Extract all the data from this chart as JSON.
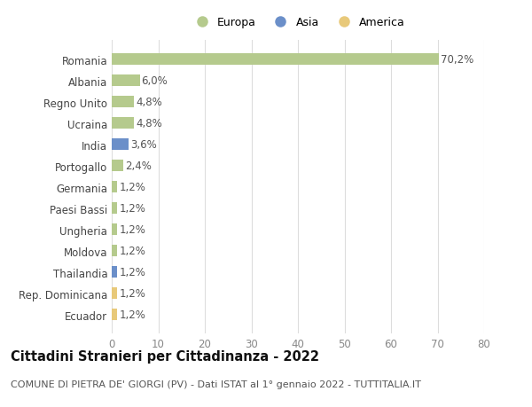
{
  "categories": [
    "Ecuador",
    "Rep. Dominicana",
    "Thailandia",
    "Moldova",
    "Ungheria",
    "Paesi Bassi",
    "Germania",
    "Portogallo",
    "India",
    "Ucraina",
    "Regno Unito",
    "Albania",
    "Romania"
  ],
  "values": [
    1.2,
    1.2,
    1.2,
    1.2,
    1.2,
    1.2,
    1.2,
    2.4,
    3.6,
    4.8,
    4.8,
    6.0,
    70.2
  ],
  "labels": [
    "1,2%",
    "1,2%",
    "1,2%",
    "1,2%",
    "1,2%",
    "1,2%",
    "1,2%",
    "2,4%",
    "3,6%",
    "4,8%",
    "4,8%",
    "6,0%",
    "70,2%"
  ],
  "colors": [
    "#e8c97a",
    "#e8c97a",
    "#6b8fc9",
    "#b5ca8d",
    "#b5ca8d",
    "#b5ca8d",
    "#b5ca8d",
    "#b5ca8d",
    "#6b8fc9",
    "#b5ca8d",
    "#b5ca8d",
    "#b5ca8d",
    "#b5ca8d"
  ],
  "continent": [
    "America",
    "America",
    "Asia",
    "Europa",
    "Europa",
    "Europa",
    "Europa",
    "Europa",
    "Asia",
    "Europa",
    "Europa",
    "Europa",
    "Europa"
  ],
  "legend_labels": [
    "Europa",
    "Asia",
    "America"
  ],
  "legend_colors": [
    "#b5ca8d",
    "#6b8fc9",
    "#e8c97a"
  ],
  "title": "Cittadini Stranieri per Cittadinanza - 2022",
  "subtitle": "COMUNE DI PIETRA DE' GIORGI (PV) - Dati ISTAT al 1° gennaio 2022 - TUTTITALIA.IT",
  "xlim": [
    0,
    80
  ],
  "xticks": [
    0,
    10,
    20,
    30,
    40,
    50,
    60,
    70,
    80
  ],
  "background_color": "#ffffff",
  "grid_color": "#dddddd",
  "bar_height": 0.55,
  "label_fontsize": 8.5,
  "tick_fontsize": 8.5,
  "title_fontsize": 10.5,
  "subtitle_fontsize": 8.0
}
